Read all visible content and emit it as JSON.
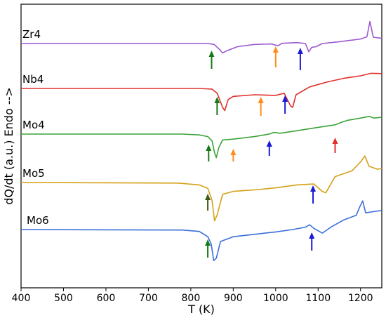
{
  "chart_data": {
    "type": "line",
    "xlabel": "T (K)",
    "ylabel": "dQ/dt (a.u.) Endo -->",
    "xlim": [
      400,
      1250
    ],
    "xticks": [
      400,
      500,
      600,
      700,
      800,
      900,
      1000,
      1100,
      1200
    ],
    "yticks_shown": false,
    "grid": false,
    "series": [
      {
        "name": "Zr4",
        "color": "#9b59d0",
        "baseline": 0.62,
        "points": [
          [
            400,
            0.62
          ],
          [
            800,
            0.62
          ],
          [
            840,
            0.62
          ],
          [
            855,
            0.58
          ],
          [
            868,
            0.35
          ],
          [
            875,
            0.2
          ],
          [
            885,
            0.3
          ],
          [
            910,
            0.48
          ],
          [
            950,
            0.58
          ],
          [
            990,
            0.6
          ],
          [
            1005,
            0.52
          ],
          [
            1015,
            0.63
          ],
          [
            1050,
            0.66
          ],
          [
            1070,
            0.62
          ],
          [
            1078,
            0.25
          ],
          [
            1085,
            0.45
          ],
          [
            1095,
            0.48
          ],
          [
            1110,
            0.62
          ],
          [
            1150,
            0.7
          ],
          [
            1200,
            0.82
          ],
          [
            1215,
            0.92
          ],
          [
            1222,
            1.6
          ],
          [
            1230,
            0.9
          ],
          [
            1250,
            0.85
          ]
        ],
        "arrows": [
          {
            "x": 849,
            "color": "#157a15"
          },
          {
            "x": 1000,
            "color": "#ff8c1a"
          },
          {
            "x": 1058,
            "color": "#1a1ad6"
          }
        ]
      },
      {
        "name": "Nb4",
        "color": "#e0302b",
        "baseline": 0.0,
        "points": [
          [
            400,
            0.0
          ],
          [
            820,
            0.0
          ],
          [
            850,
            -0.02
          ],
          [
            862,
            -0.15
          ],
          [
            875,
            -0.6
          ],
          [
            880,
            -0.7
          ],
          [
            888,
            -0.35
          ],
          [
            900,
            -0.25
          ],
          [
            950,
            -0.2
          ],
          [
            1000,
            -0.22
          ],
          [
            1020,
            -0.15
          ],
          [
            1035,
            -0.55
          ],
          [
            1040,
            -0.6
          ],
          [
            1048,
            -0.2
          ],
          [
            1080,
            0.05
          ],
          [
            1120,
            0.2
          ],
          [
            1160,
            0.32
          ],
          [
            1200,
            0.4
          ],
          [
            1225,
            0.48
          ],
          [
            1250,
            0.47
          ]
        ],
        "arrows": [
          {
            "x": 862,
            "color": "#157a15"
          },
          {
            "x": 965,
            "color": "#ff8c1a"
          },
          {
            "x": 1022,
            "color": "#1a1ad6"
          }
        ]
      },
      {
        "name": "Mo4",
        "color": "#3aa33a",
        "baseline": 0.0,
        "points": [
          [
            400,
            0.0
          ],
          [
            780,
            0.0
          ],
          [
            820,
            -0.05
          ],
          [
            840,
            -0.15
          ],
          [
            850,
            -0.4
          ],
          [
            856,
            -1.1
          ],
          [
            860,
            -1.4
          ],
          [
            866,
            -0.8
          ],
          [
            875,
            -0.35
          ],
          [
            900,
            -0.3
          ],
          [
            950,
            -0.15
          ],
          [
            985,
            0.0
          ],
          [
            995,
            0.1
          ],
          [
            1010,
            0.05
          ],
          [
            1050,
            0.2
          ],
          [
            1100,
            0.4
          ],
          [
            1140,
            0.55
          ],
          [
            1155,
            0.7
          ],
          [
            1170,
            0.82
          ],
          [
            1200,
            0.95
          ],
          [
            1220,
            1.05
          ],
          [
            1232,
            0.95
          ],
          [
            1250,
            1.0
          ]
        ],
        "arrows": [
          {
            "x": 842,
            "color": "#157a15"
          },
          {
            "x": 900,
            "color": "#ff8c1a"
          },
          {
            "x": 985,
            "color": "#1a1ad6"
          },
          {
            "x": 1140,
            "color": "#e0302b"
          }
        ]
      },
      {
        "name": "Mo5",
        "color": "#d4a017",
        "baseline": 0.0,
        "points": [
          [
            400,
            0.0
          ],
          [
            770,
            -0.02
          ],
          [
            820,
            -0.08
          ],
          [
            840,
            -0.2
          ],
          [
            850,
            -0.6
          ],
          [
            856,
            -1.3
          ],
          [
            862,
            -1.1
          ],
          [
            875,
            -0.4
          ],
          [
            900,
            -0.3
          ],
          [
            950,
            -0.25
          ],
          [
            1000,
            -0.18
          ],
          [
            1050,
            -0.08
          ],
          [
            1090,
            -0.05
          ],
          [
            1110,
            -0.3
          ],
          [
            1118,
            -0.35
          ],
          [
            1140,
            0.2
          ],
          [
            1180,
            0.4
          ],
          [
            1200,
            0.7
          ],
          [
            1210,
            0.9
          ],
          [
            1220,
            0.55
          ],
          [
            1240,
            0.45
          ],
          [
            1250,
            0.48
          ]
        ],
        "arrows": [
          {
            "x": 840,
            "color": "#3d5a1a"
          },
          {
            "x": 1088,
            "color": "#1a1ad6"
          }
        ]
      },
      {
        "name": "Mo6",
        "color": "#3a6fd8",
        "baseline": 0.0,
        "points": [
          [
            400,
            0.0
          ],
          [
            780,
            -0.02
          ],
          [
            820,
            -0.08
          ],
          [
            840,
            -0.3
          ],
          [
            848,
            -0.6
          ],
          [
            854,
            -1.3
          ],
          [
            860,
            -1.2
          ],
          [
            870,
            -0.5
          ],
          [
            900,
            -0.3
          ],
          [
            950,
            -0.2
          ],
          [
            1000,
            -0.1
          ],
          [
            1040,
            0.0
          ],
          [
            1070,
            0.1
          ],
          [
            1080,
            0.2
          ],
          [
            1090,
            0.05
          ],
          [
            1110,
            -0.15
          ],
          [
            1130,
            0.1
          ],
          [
            1160,
            0.4
          ],
          [
            1190,
            0.6
          ],
          [
            1198,
            0.95
          ],
          [
            1205,
            1.2
          ],
          [
            1212,
            0.7
          ],
          [
            1230,
            0.75
          ],
          [
            1250,
            0.8
          ]
        ],
        "arrows": [
          {
            "x": 840,
            "color": "#157a15"
          },
          {
            "x": 1085,
            "color": "#1a1ad6"
          }
        ]
      }
    ]
  }
}
